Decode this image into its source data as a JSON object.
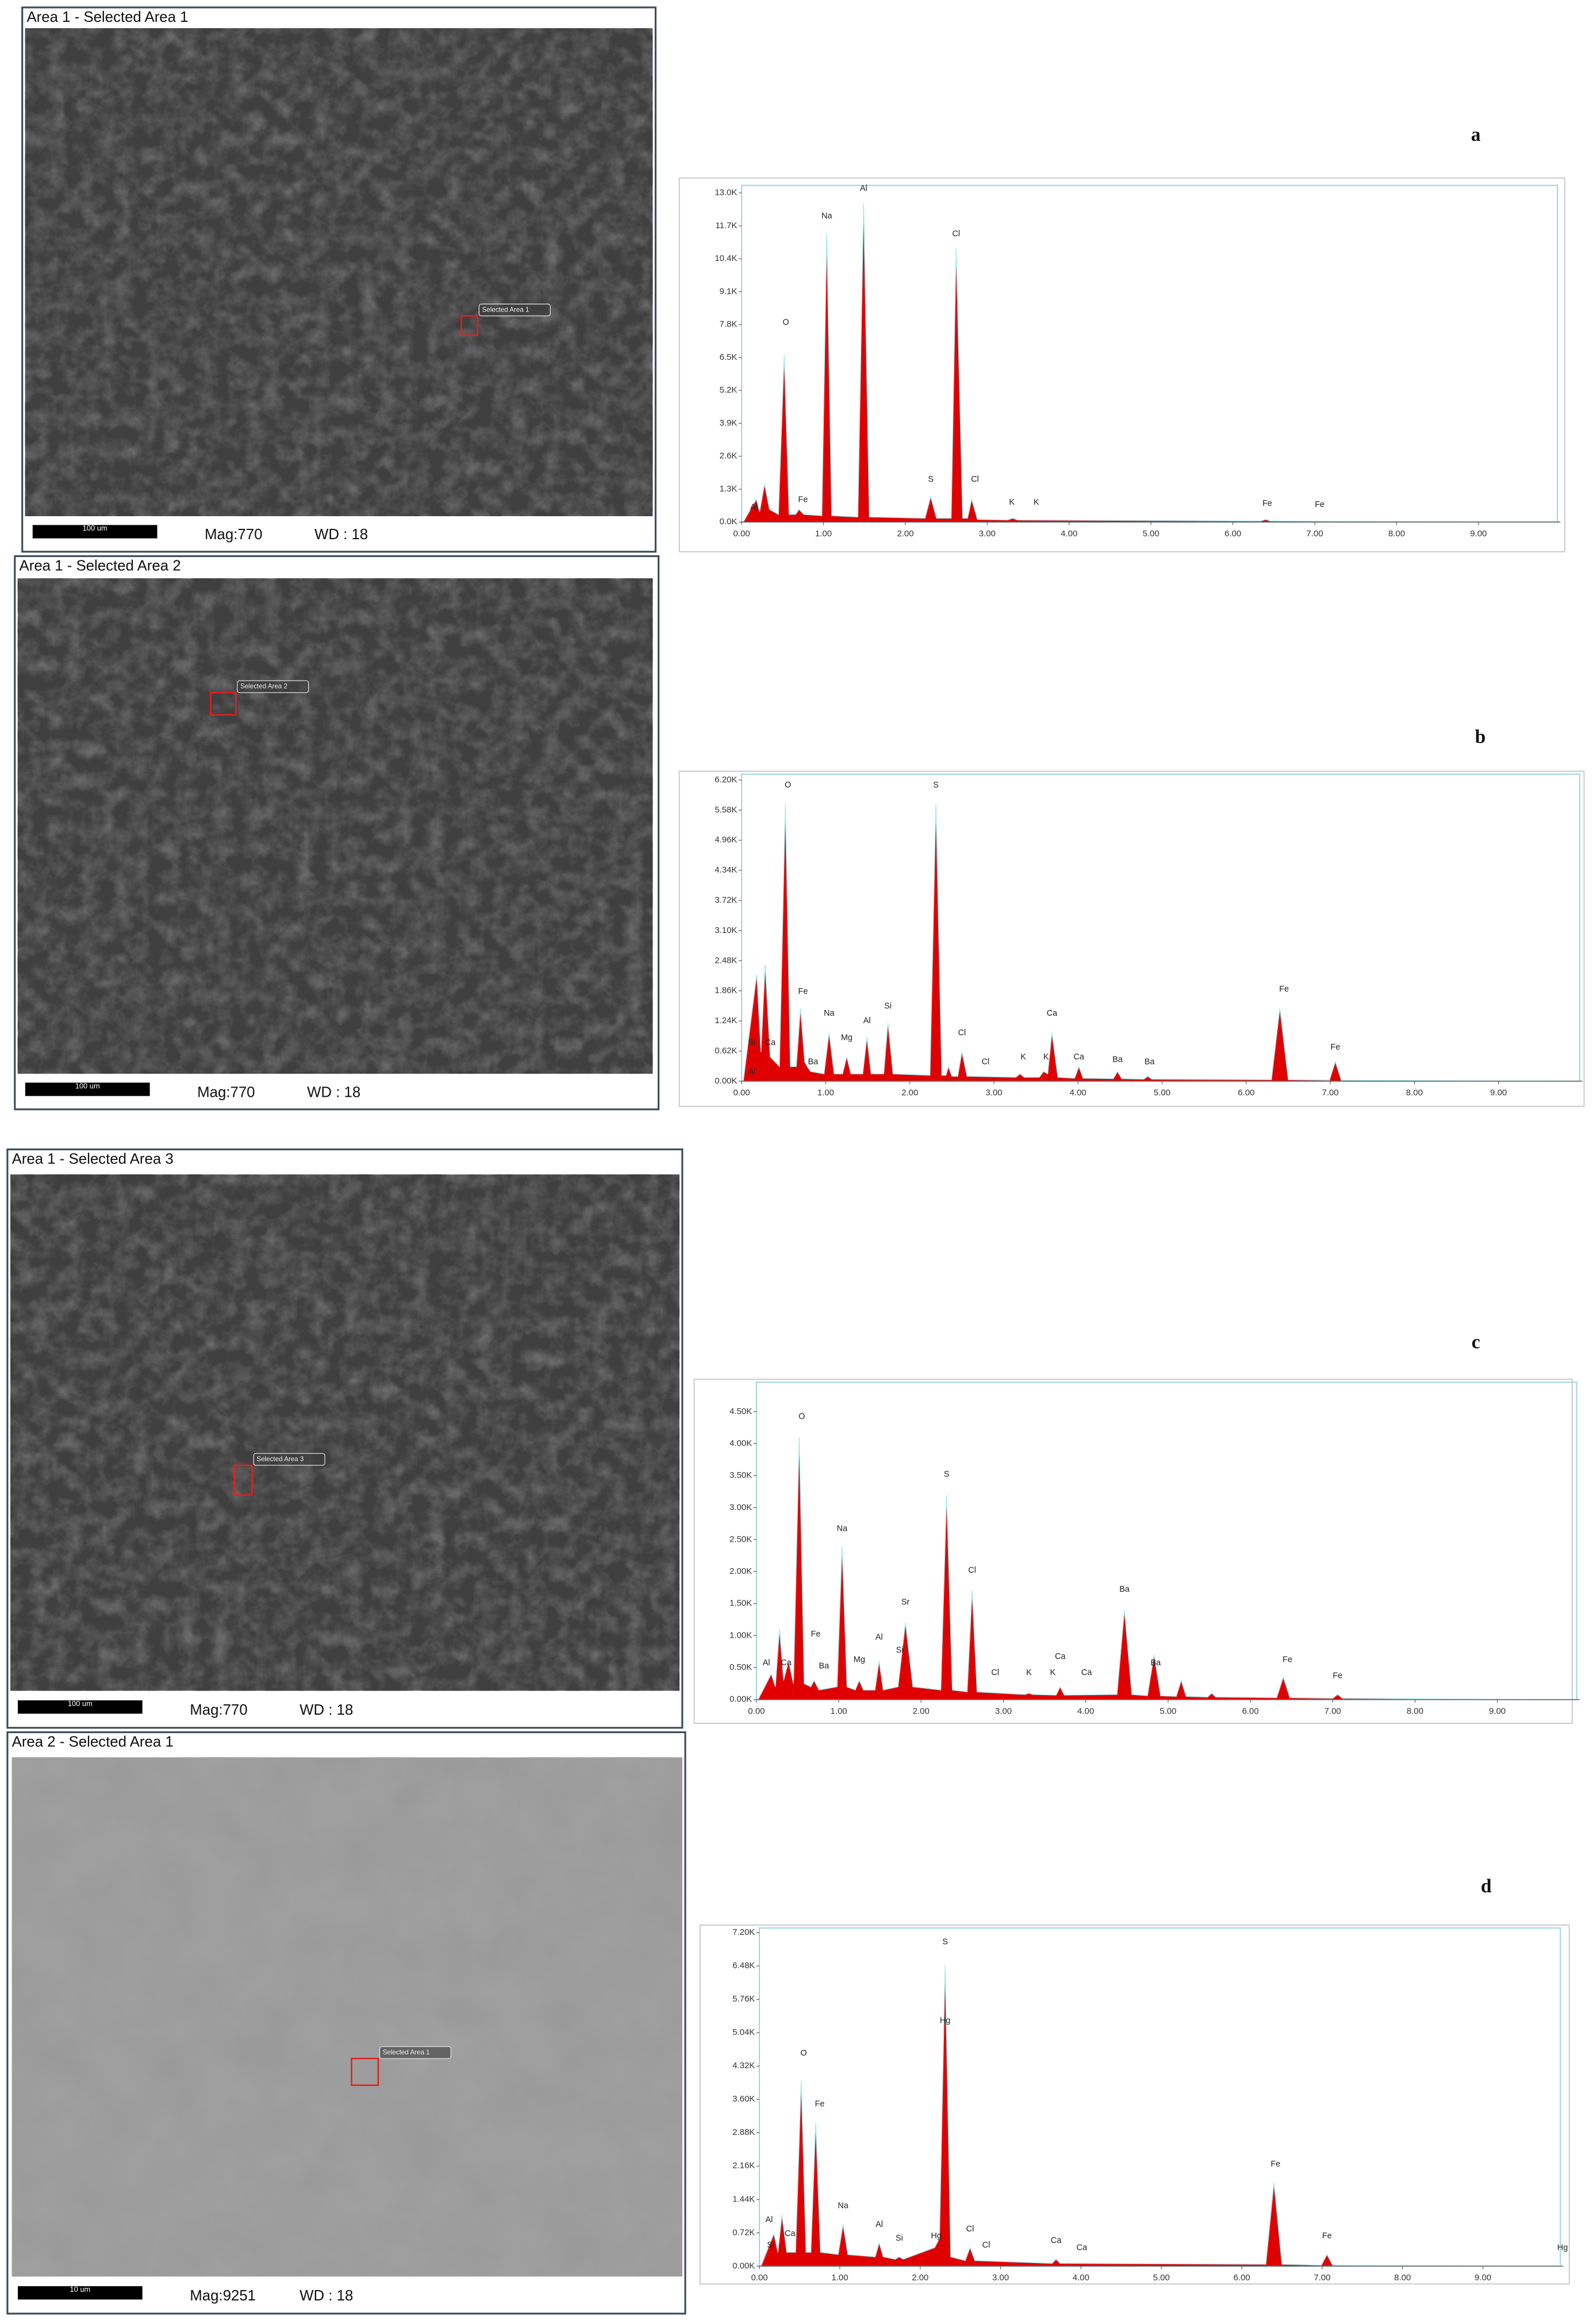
{
  "chart_data": [
    {
      "type": "area",
      "panel": "a",
      "image_title": "Area 1 - Selected Area 1",
      "mag": "Mag:770",
      "wd": "WD : 18",
      "scale_bar": "100 um",
      "selection_label": "Selected Area 1",
      "color": "#e00000",
      "x": [
        0.02,
        0.18,
        0.22,
        0.28,
        0.34,
        0.45,
        0.52,
        0.58,
        0.66,
        0.7,
        0.76,
        0.98,
        1.04,
        1.1,
        1.42,
        1.49,
        1.56,
        2.24,
        2.31,
        2.38,
        2.56,
        2.62,
        2.7,
        2.76,
        2.81,
        2.88,
        3.25,
        3.31,
        3.37,
        6.34,
        6.4,
        6.46,
        9.6
      ],
      "values": [
        0,
        900,
        400,
        1500,
        500,
        300,
        6600,
        300,
        300,
        500,
        300,
        250,
        11400,
        250,
        200,
        12600,
        200,
        150,
        1000,
        150,
        150,
        10800,
        150,
        150,
        900,
        100,
        80,
        150,
        80,
        40,
        100,
        40,
        0
      ],
      "annotations": [
        {
          "text": "Al",
          "x": 0.15,
          "y": 400
        },
        {
          "text": "O",
          "x": 0.54,
          "y": 7700
        },
        {
          "text": "Fe",
          "x": 0.75,
          "y": 700
        },
        {
          "text": "Na",
          "x": 1.04,
          "y": 11900
        },
        {
          "text": "Al",
          "x": 1.49,
          "y": 13000
        },
        {
          "text": "S",
          "x": 2.31,
          "y": 1500
        },
        {
          "text": "Cl",
          "x": 2.62,
          "y": 11200
        },
        {
          "text": "Cl",
          "x": 2.85,
          "y": 1500
        },
        {
          "text": "K",
          "x": 3.3,
          "y": 600
        },
        {
          "text": "K",
          "x": 3.6,
          "y": 600
        },
        {
          "text": "Fe",
          "x": 6.42,
          "y": 550
        },
        {
          "text": "Fe",
          "x": 7.06,
          "y": 500
        }
      ],
      "xlim": [
        0,
        10
      ],
      "ylim": [
        0,
        13300
      ],
      "xticks": [
        {
          "value": 0,
          "label": "0.00"
        },
        {
          "value": 1,
          "label": "1.00"
        },
        {
          "value": 2,
          "label": "2.00"
        },
        {
          "value": 3,
          "label": "3.00"
        },
        {
          "value": 4,
          "label": "4.00"
        },
        {
          "value": 5,
          "label": "5.00"
        },
        {
          "value": 6,
          "label": "6.00"
        },
        {
          "value": 7,
          "label": "7.00"
        },
        {
          "value": 8,
          "label": "8.00"
        },
        {
          "value": 9,
          "label": "9.00"
        }
      ],
      "yticks": [
        {
          "value": 0,
          "label": "0.0K"
        },
        {
          "value": 1300,
          "label": "1.3K"
        },
        {
          "value": 2600,
          "label": "2.6K"
        },
        {
          "value": 3900,
          "label": "3.9K"
        },
        {
          "value": 5200,
          "label": "5.2K"
        },
        {
          "value": 6500,
          "label": "6.5K"
        },
        {
          "value": 7800,
          "label": "7.8K"
        },
        {
          "value": 9100,
          "label": "9.1K"
        },
        {
          "value": 10400,
          "label": "10.4K"
        },
        {
          "value": 11700,
          "label": "11.7K"
        },
        {
          "value": 13000,
          "label": "13.0K"
        }
      ]
    },
    {
      "type": "area",
      "panel": "b",
      "image_title": "Area 1 - Selected Area 2",
      "mag": "Mag:770",
      "wd": "WD : 18",
      "scale_bar": "100 um",
      "selection_label": "Selected Area 2",
      "color": "#e00000",
      "x": [
        0.02,
        0.18,
        0.23,
        0.28,
        0.34,
        0.45,
        0.52,
        0.58,
        0.65,
        0.7,
        0.75,
        0.78,
        0.82,
        0.98,
        1.04,
        1.1,
        1.2,
        1.25,
        1.3,
        1.44,
        1.49,
        1.54,
        1.69,
        1.74,
        1.8,
        2.24,
        2.31,
        2.38,
        2.43,
        2.46,
        2.5,
        2.57,
        2.62,
        2.68,
        3.26,
        3.31,
        3.36,
        3.54,
        3.59,
        3.64,
        3.69,
        3.76,
        3.96,
        4.01,
        4.06,
        4.42,
        4.47,
        4.52,
        4.78,
        4.83,
        4.88,
        6.3,
        6.4,
        6.5,
        6.99,
        7.06,
        7.13,
        9.6
      ],
      "values": [
        0,
        2200,
        600,
        2400,
        500,
        300,
        5700,
        300,
        300,
        1500,
        400,
        300,
        200,
        150,
        1000,
        150,
        150,
        500,
        150,
        150,
        900,
        150,
        150,
        1200,
        150,
        120,
        5700,
        120,
        120,
        300,
        100,
        100,
        600,
        100,
        80,
        150,
        80,
        80,
        200,
        150,
        1000,
        80,
        60,
        300,
        60,
        50,
        200,
        50,
        40,
        100,
        40,
        30,
        1500,
        30,
        20,
        400,
        20,
        0
      ],
      "annotations": [
        {
          "text": "Al",
          "x": 0.12,
          "y": 100
        },
        {
          "text": "Si",
          "x": 0.12,
          "y": 700
        },
        {
          "text": "Ca",
          "x": 0.34,
          "y": 700
        },
        {
          "text": "O",
          "x": 0.55,
          "y": 6000
        },
        {
          "text": "Fe",
          "x": 0.73,
          "y": 1750
        },
        {
          "text": "Ba",
          "x": 0.85,
          "y": 300
        },
        {
          "text": "Na",
          "x": 1.04,
          "y": 1300
        },
        {
          "text": "Mg",
          "x": 1.25,
          "y": 800
        },
        {
          "text": "Al",
          "x": 1.49,
          "y": 1150
        },
        {
          "text": "Si",
          "x": 1.74,
          "y": 1450
        },
        {
          "text": "S",
          "x": 2.31,
          "y": 6000
        },
        {
          "text": "Cl",
          "x": 2.62,
          "y": 900
        },
        {
          "text": "Cl",
          "x": 2.9,
          "y": 300
        },
        {
          "text": "K",
          "x": 3.35,
          "y": 400
        },
        {
          "text": "K",
          "x": 3.62,
          "y": 400
        },
        {
          "text": "Ca",
          "x": 3.69,
          "y": 1300
        },
        {
          "text": "Ca",
          "x": 4.01,
          "y": 400
        },
        {
          "text": "Ba",
          "x": 4.47,
          "y": 350
        },
        {
          "text": "Ba",
          "x": 4.85,
          "y": 300
        },
        {
          "text": "Fe",
          "x": 6.45,
          "y": 1800
        },
        {
          "text": "Fe",
          "x": 7.06,
          "y": 600
        }
      ],
      "xlim": [
        0,
        10
      ],
      "ylim": [
        0,
        6320
      ],
      "xticks": [
        {
          "value": 0,
          "label": "0.00"
        },
        {
          "value": 1,
          "label": "1.00"
        },
        {
          "value": 2,
          "label": "2.00"
        },
        {
          "value": 3,
          "label": "3.00"
        },
        {
          "value": 4,
          "label": "4.00"
        },
        {
          "value": 5,
          "label": "5.00"
        },
        {
          "value": 6,
          "label": "6.00"
        },
        {
          "value": 7,
          "label": "7.00"
        },
        {
          "value": 8,
          "label": "8.00"
        },
        {
          "value": 9,
          "label": "9.00"
        }
      ],
      "yticks": [
        {
          "value": 0,
          "label": "0.00K"
        },
        {
          "value": 620,
          "label": "0.62K"
        },
        {
          "value": 1240,
          "label": "1.24K"
        },
        {
          "value": 1860,
          "label": "1.86K"
        },
        {
          "value": 2480,
          "label": "2.48K"
        },
        {
          "value": 3100,
          "label": "3.10K"
        },
        {
          "value": 3720,
          "label": "3.72K"
        },
        {
          "value": 4340,
          "label": "4.34K"
        },
        {
          "value": 4960,
          "label": "4.96K"
        },
        {
          "value": 5580,
          "label": "5.58K"
        },
        {
          "value": 6200,
          "label": "6.20K"
        }
      ]
    },
    {
      "type": "area",
      "panel": "c",
      "image_title": "Area 1 - Selected Area 3",
      "mag": "Mag:770",
      "wd": "WD : 18",
      "scale_bar": "100 um",
      "selection_label": "Selected Area 3",
      "color": "#e00000",
      "x": [
        0.02,
        0.18,
        0.23,
        0.28,
        0.33,
        0.39,
        0.45,
        0.52,
        0.58,
        0.66,
        0.7,
        0.76,
        0.98,
        1.04,
        1.1,
        1.2,
        1.25,
        1.3,
        1.44,
        1.49,
        1.54,
        1.72,
        1.81,
        1.9,
        2.24,
        2.31,
        2.38,
        2.56,
        2.62,
        2.68,
        3.26,
        3.31,
        3.36,
        3.64,
        3.69,
        3.74,
        4.38,
        4.47,
        4.56,
        4.75,
        4.83,
        4.91,
        5.1,
        5.16,
        5.22,
        5.48,
        5.53,
        5.58,
        6.32,
        6.4,
        6.48,
        7.0,
        7.06,
        7.12,
        9.6
      ],
      "values": [
        0,
        400,
        200,
        1100,
        300,
        600,
        250,
        4100,
        250,
        200,
        300,
        150,
        200,
        2400,
        200,
        150,
        300,
        150,
        150,
        600,
        150,
        200,
        1200,
        200,
        150,
        3200,
        150,
        120,
        1700,
        120,
        80,
        100,
        80,
        70,
        200,
        70,
        80,
        1400,
        80,
        60,
        700,
        60,
        50,
        300,
        50,
        40,
        100,
        40,
        30,
        350,
        30,
        20,
        80,
        20,
        0
      ],
      "annotations": [
        {
          "text": "Al",
          "x": 0.12,
          "y": 500
        },
        {
          "text": "Ca",
          "x": 0.36,
          "y": 500
        },
        {
          "text": "O",
          "x": 0.55,
          "y": 4350
        },
        {
          "text": "Fe",
          "x": 0.72,
          "y": 950
        },
        {
          "text": "Ba",
          "x": 0.82,
          "y": 450
        },
        {
          "text": "Na",
          "x": 1.04,
          "y": 2600
        },
        {
          "text": "Mg",
          "x": 1.25,
          "y": 550
        },
        {
          "text": "Al",
          "x": 1.49,
          "y": 900
        },
        {
          "text": "Si",
          "x": 1.74,
          "y": 700
        },
        {
          "text": "Sr",
          "x": 1.81,
          "y": 1450
        },
        {
          "text": "S",
          "x": 2.31,
          "y": 3450
        },
        {
          "text": "Cl",
          "x": 2.62,
          "y": 1950
        },
        {
          "text": "Cl",
          "x": 2.9,
          "y": 350
        },
        {
          "text": "K",
          "x": 3.31,
          "y": 350
        },
        {
          "text": "K",
          "x": 3.6,
          "y": 350
        },
        {
          "text": "Ca",
          "x": 3.69,
          "y": 600
        },
        {
          "text": "Ca",
          "x": 4.01,
          "y": 350
        },
        {
          "text": "Ba",
          "x": 4.47,
          "y": 1650
        },
        {
          "text": "Ba",
          "x": 4.85,
          "y": 500
        },
        {
          "text": "Fe",
          "x": 6.45,
          "y": 550
        },
        {
          "text": "Fe",
          "x": 7.06,
          "y": 300
        }
      ],
      "xlim": [
        0,
        10
      ],
      "ylim": [
        0,
        4960
      ],
      "xticks": [
        {
          "value": 0,
          "label": "0.00"
        },
        {
          "value": 1,
          "label": "1.00"
        },
        {
          "value": 2,
          "label": "2.00"
        },
        {
          "value": 3,
          "label": "3.00"
        },
        {
          "value": 4,
          "label": "4.00"
        },
        {
          "value": 5,
          "label": "5.00"
        },
        {
          "value": 6,
          "label": "6.00"
        },
        {
          "value": 7,
          "label": "7.00"
        },
        {
          "value": 8,
          "label": "8.00"
        },
        {
          "value": 9,
          "label": "9.00"
        }
      ],
      "yticks": [
        {
          "value": 0,
          "label": "0.00K"
        },
        {
          "value": 500,
          "label": "0.50K"
        },
        {
          "value": 1000,
          "label": "1.00K"
        },
        {
          "value": 1500,
          "label": "1.50K"
        },
        {
          "value": 2000,
          "label": "2.00K"
        },
        {
          "value": 2500,
          "label": "2.50K"
        },
        {
          "value": 3000,
          "label": "3.00K"
        },
        {
          "value": 3500,
          "label": "3.50K"
        },
        {
          "value": 4000,
          "label": "4.00K"
        },
        {
          "value": 4500,
          "label": "4.50K"
        }
      ]
    },
    {
      "type": "area",
      "panel": "d",
      "image_title": "Area 2 - Selected Area 1",
      "mag": "Mag:9251",
      "wd": "WD : 18",
      "scale_bar": "10 um",
      "selection_label": "Selected Area 1",
      "color": "#e00000",
      "x": [
        0.02,
        0.18,
        0.23,
        0.28,
        0.34,
        0.45,
        0.52,
        0.58,
        0.64,
        0.7,
        0.76,
        0.98,
        1.04,
        1.1,
        1.44,
        1.49,
        1.54,
        1.69,
        1.74,
        1.79,
        2.18,
        2.24,
        2.31,
        2.38,
        2.56,
        2.62,
        2.68,
        3.64,
        3.69,
        3.74,
        6.3,
        6.4,
        6.5,
        6.99,
        7.06,
        7.13,
        9.6
      ],
      "values": [
        0,
        700,
        300,
        1100,
        300,
        300,
        4000,
        300,
        300,
        3100,
        300,
        250,
        900,
        250,
        200,
        500,
        200,
        150,
        200,
        150,
        400,
        600,
        6500,
        200,
        120,
        400,
        120,
        60,
        150,
        60,
        40,
        1800,
        40,
        20,
        250,
        20,
        0
      ],
      "annotations": [
        {
          "text": "Al",
          "x": 0.12,
          "y": 900
        },
        {
          "text": "Si",
          "x": 0.14,
          "y": 350
        },
        {
          "text": "Ca",
          "x": 0.38,
          "y": 600
        },
        {
          "text": "O",
          "x": 0.55,
          "y": 4500
        },
        {
          "text": "Fe",
          "x": 0.75,
          "y": 3400
        },
        {
          "text": "Na",
          "x": 1.04,
          "y": 1200
        },
        {
          "text": "Al",
          "x": 1.49,
          "y": 800
        },
        {
          "text": "Si",
          "x": 1.74,
          "y": 500
        },
        {
          "text": "S",
          "x": 2.31,
          "y": 6900
        },
        {
          "text": "Hg",
          "x": 2.31,
          "y": 5200
        },
        {
          "text": "Hg",
          "x": 2.2,
          "y": 550
        },
        {
          "text": "Cl",
          "x": 2.62,
          "y": 700
        },
        {
          "text": "Cl",
          "x": 2.82,
          "y": 350
        },
        {
          "text": "Ca",
          "x": 3.69,
          "y": 450
        },
        {
          "text": "Ca",
          "x": 4.01,
          "y": 300
        },
        {
          "text": "Fe",
          "x": 6.42,
          "y": 2100
        },
        {
          "text": "Fe",
          "x": 7.06,
          "y": 550
        },
        {
          "text": "Hg",
          "x": 9.99,
          "y": 300
        }
      ],
      "xlim": [
        0,
        10
      ],
      "ylim": [
        0,
        7300
      ],
      "xticks": [
        {
          "value": 0,
          "label": "0.00"
        },
        {
          "value": 1,
          "label": "1.00"
        },
        {
          "value": 2,
          "label": "2.00"
        },
        {
          "value": 3,
          "label": "3.00"
        },
        {
          "value": 4,
          "label": "4.00"
        },
        {
          "value": 5,
          "label": "5.00"
        },
        {
          "value": 6,
          "label": "6.00"
        },
        {
          "value": 7,
          "label": "7.00"
        },
        {
          "value": 8,
          "label": "8.00"
        },
        {
          "value": 9,
          "label": "9.00"
        }
      ],
      "yticks": [
        {
          "value": 0,
          "label": "0.00K"
        },
        {
          "value": 720,
          "label": "0.72K"
        },
        {
          "value": 1440,
          "label": "1.44K"
        },
        {
          "value": 2160,
          "label": "2.16K"
        },
        {
          "value": 2880,
          "label": "2.88K"
        },
        {
          "value": 3600,
          "label": "3.60K"
        },
        {
          "value": 4320,
          "label": "4.32K"
        },
        {
          "value": 5040,
          "label": "5.04K"
        },
        {
          "value": 5760,
          "label": "5.76K"
        },
        {
          "value": 6480,
          "label": "6.48K"
        },
        {
          "value": 7200,
          "label": "7.20K"
        }
      ]
    }
  ]
}
